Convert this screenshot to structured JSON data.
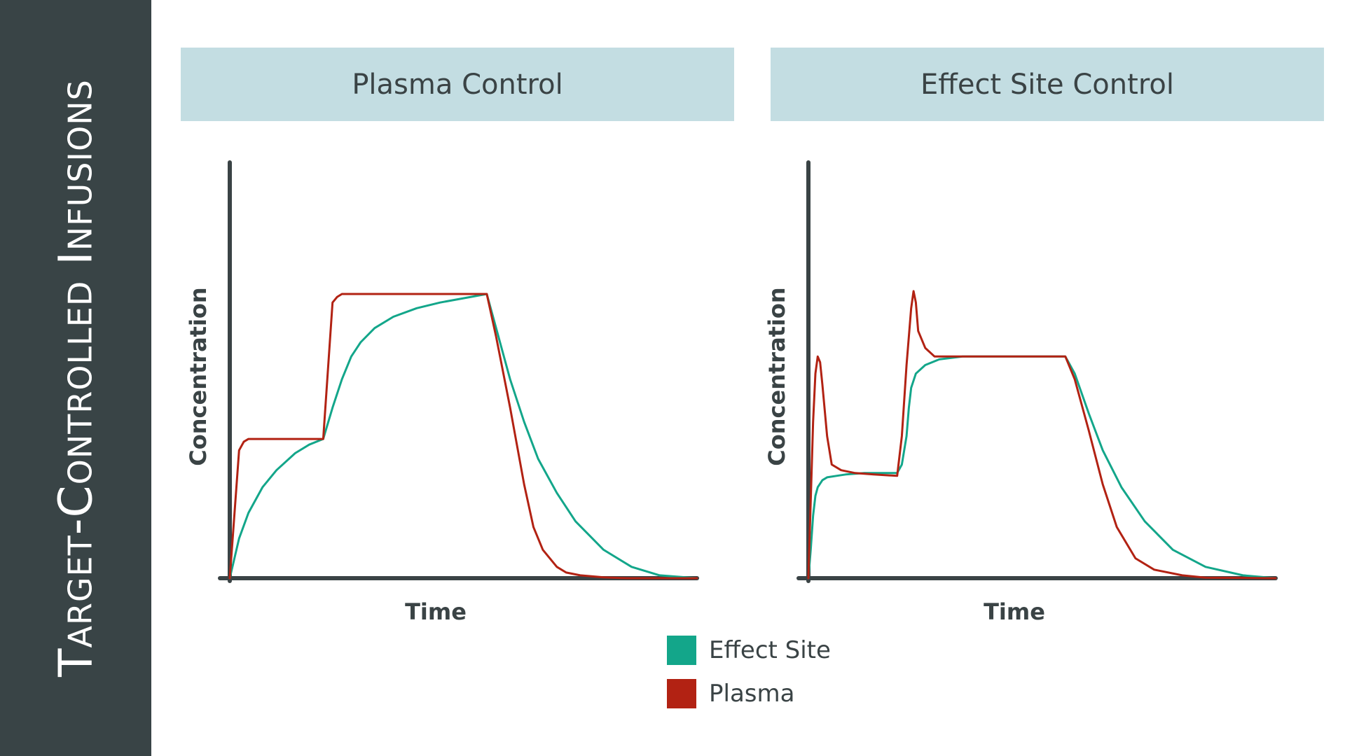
{
  "sidebar": {
    "title": "Target-Controlled Infusions"
  },
  "colors": {
    "effect_site": "#13a68a",
    "plasma": "#b22213",
    "axis": "#3a4345",
    "header_bg": "#c3dde2",
    "sidebar_bg": "#394446"
  },
  "chart_data": [
    {
      "type": "line",
      "title": "Plasma Control",
      "xlabel": "Time",
      "ylabel": "Concentration",
      "xlim": [
        0,
        100
      ],
      "ylim": [
        0,
        100
      ],
      "series": [
        {
          "name": "Plasma",
          "x": [
            0,
            2,
            3,
            4,
            20,
            22,
            23,
            24,
            55,
            57,
            60,
            63,
            65,
            67,
            70,
            72,
            75,
            80,
            85,
            90,
            100
          ],
          "y": [
            0,
            45,
            48,
            49,
            49,
            97,
            99,
            100,
            100,
            85,
            60,
            33,
            18,
            10,
            4,
            2,
            1,
            0.3,
            0,
            0,
            0
          ]
        },
        {
          "name": "Effect Site",
          "x": [
            0,
            2,
            4,
            7,
            10,
            14,
            17,
            20,
            22,
            24,
            26,
            28,
            31,
            35,
            40,
            45,
            50,
            55,
            57,
            60,
            63,
            66,
            70,
            74,
            80,
            86,
            92,
            100
          ],
          "y": [
            0,
            14,
            23,
            32,
            38,
            44,
            47,
            49,
            60,
            70,
            78,
            83,
            88,
            92,
            95,
            97,
            98.5,
            100,
            88,
            70,
            55,
            42,
            30,
            20,
            10,
            4,
            1,
            0
          ]
        }
      ]
    },
    {
      "type": "line",
      "title": "Effect Site Control",
      "xlabel": "Time",
      "ylabel": "Concentration",
      "xlim": [
        0,
        100
      ],
      "ylim": [
        0,
        100
      ],
      "series": [
        {
          "name": "Plasma",
          "x": [
            0,
            1,
            1.5,
            2,
            2.5,
            3,
            4,
            5,
            7,
            10,
            14,
            19,
            20,
            21,
            22,
            22.5,
            23,
            23.5,
            25,
            27,
            29,
            35,
            45,
            55,
            57,
            60,
            63,
            66,
            70,
            74,
            80,
            85,
            100
          ],
          "y": [
            0,
            55,
            72,
            78,
            76,
            68,
            50,
            40,
            38,
            37,
            36.5,
            36,
            50,
            75,
            95,
            101,
            97,
            87,
            81,
            78,
            78,
            78,
            78,
            78,
            70,
            52,
            33,
            18,
            7,
            3,
            1,
            0.2,
            0
          ]
        },
        {
          "name": "Effect Site",
          "x": [
            0,
            0.5,
            1,
            1.5,
            2,
            3,
            4,
            6,
            8,
            12,
            16,
            19,
            20,
            21,
            21.5,
            22,
            23,
            25,
            28,
            33,
            40,
            55,
            57,
            60,
            63,
            67,
            72,
            78,
            85,
            93,
            100
          ],
          "y": [
            0,
            10,
            22,
            29,
            32,
            34.5,
            35.5,
            36,
            36.5,
            37,
            37,
            37,
            40,
            50,
            60,
            67,
            72,
            75,
            77,
            78,
            78,
            78,
            72,
            58,
            45,
            32,
            20,
            10,
            4,
            1,
            0
          ]
        }
      ]
    }
  ],
  "legend": [
    {
      "label": "Effect Site",
      "key": "effect_site"
    },
    {
      "label": "Plasma",
      "key": "plasma"
    }
  ]
}
